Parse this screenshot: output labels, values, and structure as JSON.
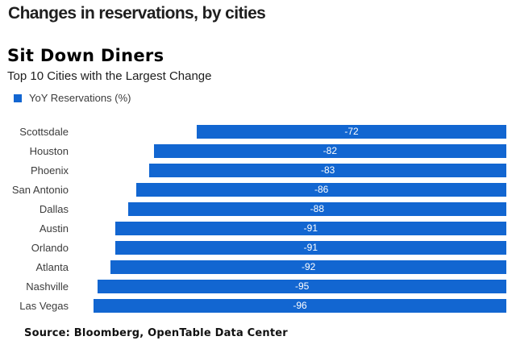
{
  "page": {
    "background": "#ffffff"
  },
  "headline": {
    "text": "Changes in reservations, by cities"
  },
  "chart": {
    "title": "Sit Down Diners",
    "subtitle": "Top 10 Cities with the Largest Change",
    "legend": {
      "label": "YoY Reservations (%)",
      "swatch_color": "#1266d1"
    },
    "bar_color": "#1266d1",
    "value_label_color": "#ffffff",
    "source": "Source: Bloomberg, OpenTable Data Center"
  },
  "chart_data": {
    "type": "bar",
    "orientation": "horizontal",
    "title": "Sit Down Diners",
    "subtitle": "Top 10 Cities with the Largest Change",
    "series_name": "YoY Reservations (%)",
    "categories": [
      "Scottsdale",
      "Houston",
      "Phoenix",
      "San Antonio",
      "Dallas",
      "Austin",
      "Orlando",
      "Atlanta",
      "Nashville",
      "Las Vegas"
    ],
    "values": [
      -72,
      -82,
      -83,
      -86,
      -88,
      -91,
      -91,
      -92,
      -95,
      -96
    ],
    "xlim": [
      -96,
      0
    ],
    "grid": false,
    "axis_visible": false,
    "legend_position": "top-left",
    "value_labels": "inside-center",
    "source": "Source: Bloomberg, OpenTable Data Center"
  }
}
